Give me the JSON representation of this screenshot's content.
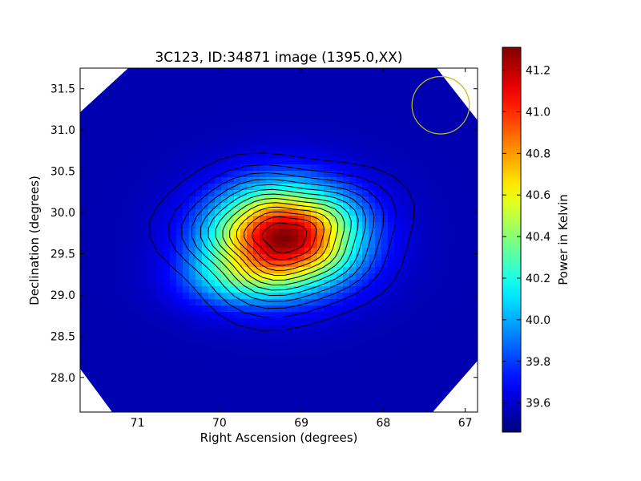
{
  "chart_data": {
    "type": "heatmap",
    "title": "3C123, ID:34871 image (1395.0,XX)",
    "xlabel": "Right Ascension (degrees)",
    "ylabel": "Declination (degrees)",
    "xlim": [
      71.7,
      66.85
    ],
    "ylim": [
      27.58,
      31.75
    ],
    "x_inverted": true,
    "xticks": [
      71,
      70,
      69,
      68,
      67
    ],
    "xtick_labels": [
      "71",
      "70",
      "69",
      "68",
      "67"
    ],
    "yticks": [
      28.0,
      28.5,
      29.0,
      29.5,
      30.0,
      30.5,
      31.0,
      31.5
    ],
    "ytick_labels": [
      "28.0",
      "28.5",
      "29.0",
      "29.5",
      "30.0",
      "30.5",
      "31.0",
      "31.5"
    ],
    "colormap": "jet",
    "colorbar": {
      "label": "Power in Kelvin",
      "range": [
        39.46,
        41.31
      ],
      "ticks": [
        39.6,
        39.8,
        40.0,
        40.2,
        40.4,
        40.6,
        40.8,
        41.0,
        41.2
      ],
      "tick_labels": [
        "39.6",
        "39.8",
        "40.0",
        "40.2",
        "40.4",
        "40.6",
        "40.8",
        "41.0",
        "41.2"
      ]
    },
    "peak": {
      "x": 69.2,
      "y": 29.7,
      "value": 41.3
    },
    "background_level": 39.55,
    "contours": "black contour lines at regular intervals of power",
    "beam_circle": {
      "x": 67.3,
      "y": 31.3,
      "radius": 0.35,
      "color": "#bdbd18"
    },
    "grid": false
  }
}
